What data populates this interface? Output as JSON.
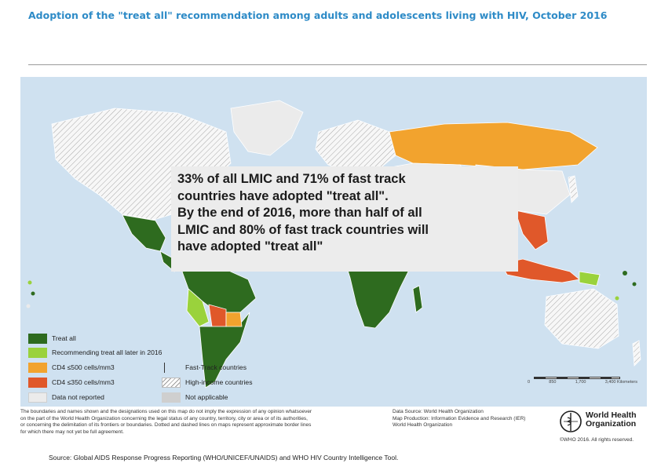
{
  "title": "Adoption of the \"treat all\" recommendation among adults and adolescents living with HIV, October 2016",
  "callout": {
    "line1": "33% of all LMIC and 71% of fast track",
    "line2": "countries have adopted \"treat all\".",
    "line3": "By the end of 2016, more than half of all",
    "line4": "LMIC and 80% of fast track countries will",
    "line5": "have adopted \"treat all\""
  },
  "legend": {
    "treat_all": "Treat all",
    "later_2016": "Recommending treat all later in 2016",
    "cd4_500": "CD4 ≤500 cells/mm3",
    "cd4_350": "CD4 ≤350 cells/mm3",
    "not_reported": "Data not reported",
    "fast_track": "Fast-Track countries",
    "high_income": "High-income countries",
    "not_applicable": "Not applicable"
  },
  "scale": {
    "labels": [
      "0",
      "850",
      "1,700",
      "3,400 Kilometers"
    ]
  },
  "disclaimer": {
    "line1": "The boundaries and names shown and the designations used on this map do not imply the expression of any opinion whatsoever",
    "line2": "on the part of the World Health Organization concerning the legal status of any country, territory, city or area or of its authorities,",
    "line3": "or concerning the delimitation of its frontiers or boundaries. Dotted and dashed lines on maps represent approximate border lines",
    "line4": "for which there may not yet be full agreement."
  },
  "credits": {
    "line1": "Data Source: World Health Organization",
    "line2": "Map Production: Information Evidence and Research (IER)",
    "line3": "World Health Organization"
  },
  "who": {
    "name_line1": "World Health",
    "name_line2": "Organization",
    "copyright": "©WHO 2016. All rights reserved."
  },
  "source": "Source: Global AIDS Response Progress Reporting (WHO/UNICEF/UNAIDS) and WHO HIV Country Intelligence Tool.",
  "colors": {
    "treat_all": "#2e6b1f",
    "later_2016": "#9ad23c",
    "cd4_500": "#f2a32e",
    "cd4_350": "#e0582a",
    "not_reported": "#ebebeb",
    "not_applicable": "#cfcfcf",
    "ocean": "#cfe1f0",
    "title": "#2e8bc7"
  }
}
